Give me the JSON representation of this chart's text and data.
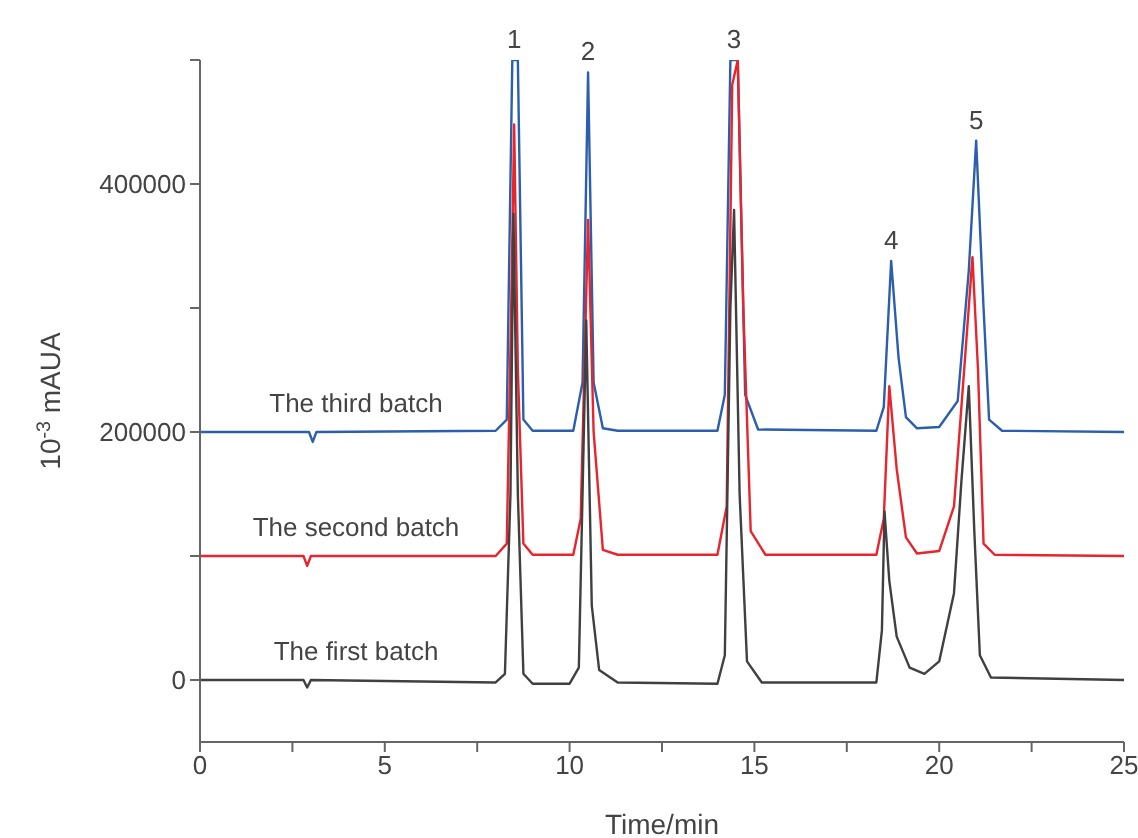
{
  "chart_data": {
    "type": "line",
    "xlabel": "Time/min",
    "ylabel": "10$^{-3}$ mAUA",
    "xlim": [
      0,
      25
    ],
    "ylim": [
      -50000,
      500000
    ],
    "xticks": [
      0,
      {
        "value": 2.5,
        "label": null
      },
      5,
      {
        "value": 7.5,
        "label": null
      },
      10,
      {
        "value": 12.5,
        "label": null
      },
      15,
      {
        "value": 17.5,
        "label": null
      },
      20,
      {
        "value": 22.5,
        "label": null
      },
      25
    ],
    "yticks": [
      0,
      {
        "value": 100000,
        "label": null
      },
      200000,
      {
        "value": 300000,
        "label": null
      },
      400000,
      {
        "value": 500000,
        "label": null
      }
    ],
    "marker": "none",
    "line_style": "solid",
    "annotations": [
      {
        "text": "1",
        "x": 8.5,
        "y": 500000
      },
      {
        "text": "2",
        "x": 10.5,
        "y": 490000
      },
      {
        "text": "3",
        "x": 14.45,
        "y": 500000
      },
      {
        "text": "4",
        "x": 18.7,
        "y": 338000
      },
      {
        "text": "5",
        "x": 21.0,
        "y": 435000
      }
    ],
    "series": [
      {
        "name": "The first batch",
        "color": "#404040",
        "x": [
          0,
          2.8,
          2.9,
          3.0,
          8.0,
          8.25,
          8.4,
          8.48,
          8.6,
          8.75,
          9.0,
          10.0,
          10.25,
          10.45,
          10.6,
          10.8,
          11.3,
          14.0,
          14.2,
          14.35,
          14.45,
          14.6,
          14.8,
          15.2,
          18.3,
          18.45,
          18.52,
          18.65,
          18.85,
          19.2,
          19.6,
          20.0,
          20.4,
          20.6,
          20.8,
          20.95,
          21.1,
          21.4,
          25
        ],
        "values": [
          0,
          0,
          -6000,
          0,
          -2000,
          5000,
          150000,
          376000,
          150000,
          5000,
          -3000,
          -3000,
          10000,
          290000,
          60000,
          8000,
          -2000,
          -3000,
          20000,
          300000,
          379000,
          150000,
          15000,
          -2000,
          -2000,
          40000,
          136000,
          80000,
          35000,
          10000,
          5000,
          15000,
          70000,
          160000,
          237000,
          120000,
          20000,
          2000,
          0
        ]
      },
      {
        "name": "The second batch",
        "color": "#e8242c",
        "x": [
          0,
          2.8,
          2.9,
          3.0,
          8.0,
          8.3,
          8.42,
          8.5,
          8.6,
          8.75,
          9.0,
          10.1,
          10.3,
          10.5,
          10.65,
          10.9,
          11.3,
          14.0,
          14.25,
          14.4,
          14.55,
          14.7,
          14.9,
          15.3,
          18.3,
          18.5,
          18.65,
          18.85,
          19.1,
          19.4,
          20.0,
          20.4,
          20.7,
          20.9,
          21.05,
          21.2,
          21.5,
          25
        ],
        "values": [
          100000,
          100000,
          92000,
          100000,
          100000,
          110000,
          300000,
          448000,
          250000,
          110000,
          101000,
          101000,
          130000,
          371000,
          200000,
          105000,
          101000,
          101000,
          140000,
          480000,
          500000,
          300000,
          120000,
          101000,
          101000,
          130000,
          237000,
          170000,
          115000,
          102000,
          104000,
          140000,
          260000,
          341000,
          250000,
          110000,
          101000,
          100000
        ]
      },
      {
        "name": "The third batch",
        "color": "#2b5fae",
        "x": [
          0,
          2.95,
          3.05,
          3.15,
          8.0,
          8.3,
          8.45,
          8.6,
          8.75,
          9.0,
          10.1,
          10.35,
          10.5,
          10.65,
          10.9,
          11.3,
          14.0,
          14.2,
          14.35,
          14.55,
          14.75,
          15.1,
          18.3,
          18.5,
          18.7,
          18.9,
          19.1,
          19.4,
          20.0,
          20.5,
          20.8,
          21.0,
          21.2,
          21.35,
          21.7,
          25
        ],
        "values": [
          200000,
          200000,
          192000,
          200000,
          201000,
          210000,
          500000,
          500000,
          210000,
          201000,
          201000,
          240000,
          490000,
          240000,
          203000,
          201000,
          201000,
          230000,
          500000,
          500000,
          230000,
          202000,
          201000,
          220000,
          338000,
          260000,
          212000,
          203000,
          204000,
          225000,
          330000,
          435000,
          300000,
          210000,
          201000,
          200000
        ]
      }
    ]
  }
}
